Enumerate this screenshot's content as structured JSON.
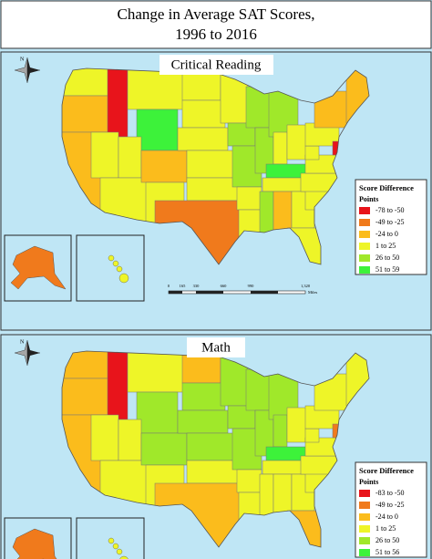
{
  "title": [
    "Change in Average SAT Scores,",
    "1996 to 2016"
  ],
  "compass": "N",
  "scale_bar": {
    "ticks": [
      "0",
      "165",
      "330",
      "660",
      "990",
      "1,320"
    ],
    "unit": "Miles"
  },
  "panels": [
    {
      "subtitle": "Critical Reading",
      "legend": {
        "title": "Score Difference",
        "subtitle": "Points",
        "items": [
          {
            "label": "-78 to -50",
            "color": "#e8141b"
          },
          {
            "label": "-49 to -25",
            "color": "#f07a1c"
          },
          {
            "label": "-24 to 0",
            "color": "#fbbc1c"
          },
          {
            "label": "1 to 25",
            "color": "#eef528"
          },
          {
            "label": "26 to 50",
            "color": "#a0e82a"
          },
          {
            "label": "51 to 59",
            "color": "#3df23a"
          }
        ]
      }
    },
    {
      "subtitle": "Math",
      "legend": {
        "title": "Score Difference",
        "subtitle": "Points",
        "items": [
          {
            "label": "-83 to -50",
            "color": "#e8141b"
          },
          {
            "label": "-49 to -25",
            "color": "#f07a1c"
          },
          {
            "label": "-24 to 0",
            "color": "#fbbc1c"
          },
          {
            "label": "1 to 25",
            "color": "#eef528"
          },
          {
            "label": "26 to 50",
            "color": "#a0e82a"
          },
          {
            "label": "51 to 56",
            "color": "#3df23a"
          }
        ]
      }
    }
  ]
}
